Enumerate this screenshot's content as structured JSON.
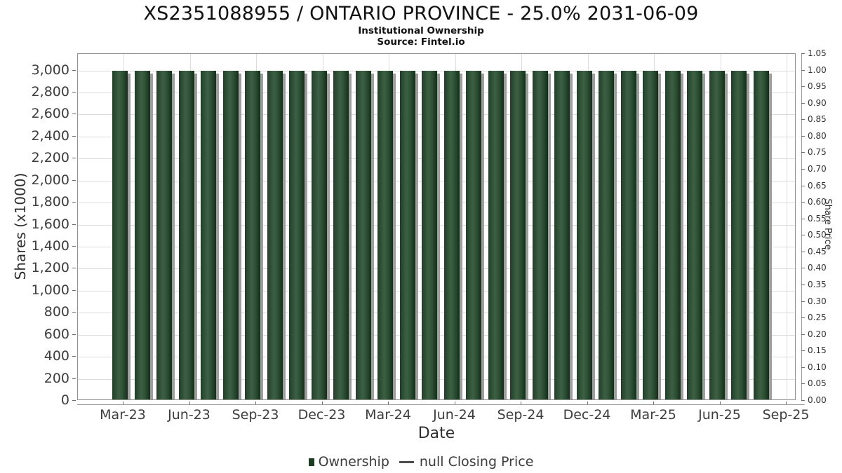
{
  "header": {
    "title": "XS2351088955 / ONTARIO PROVINCE - 25.0% 2031-06-09",
    "subtitle": "Institutional Ownership",
    "source": "Source: Fintel.io"
  },
  "chart_data": {
    "type": "bar",
    "title": "XS2351088955 / ONTARIO PROVINCE - 25.0% 2031-06-09",
    "subtitle": "Institutional Ownership",
    "source": "Source: Fintel.io",
    "xlabel": "Date",
    "ylabel_left": "Shares (x1000)",
    "ylabel_right": "Share Price",
    "categories": [
      "Mar-23",
      "Apr-23",
      "May-23",
      "Jun-23",
      "Jul-23",
      "Aug-23",
      "Sep-23",
      "Oct-23",
      "Nov-23",
      "Dec-23",
      "Jan-24",
      "Feb-24",
      "Mar-24",
      "Apr-24",
      "May-24",
      "Jun-24",
      "Jul-24",
      "Aug-24",
      "Sep-24",
      "Oct-24",
      "Nov-24",
      "Dec-24",
      "Jan-25",
      "Feb-25",
      "Mar-25",
      "Apr-25",
      "May-25",
      "Jun-25",
      "Jul-25",
      "Aug-25"
    ],
    "series": [
      {
        "name": "Ownership",
        "values": [
          3000,
          3000,
          3000,
          3000,
          3000,
          3000,
          3000,
          3000,
          3000,
          3000,
          3000,
          3000,
          3000,
          3000,
          3000,
          3000,
          3000,
          3000,
          3000,
          3000,
          3000,
          3000,
          3000,
          3000,
          3000,
          3000,
          3000,
          3000,
          3000,
          3000
        ]
      },
      {
        "name": "null Closing Price",
        "values": []
      }
    ],
    "x_ticks": [
      "Mar-23",
      "Jun-23",
      "Sep-23",
      "Dec-23",
      "Mar-24",
      "Jun-24",
      "Sep-24",
      "Dec-24",
      "Mar-25",
      "Jun-25",
      "Sep-25"
    ],
    "y_left_ticks": [
      "0",
      "200",
      "400",
      "600",
      "800",
      "1,000",
      "1,200",
      "1,400",
      "1,600",
      "1,800",
      "2,000",
      "2,200",
      "2,400",
      "2,600",
      "2,800",
      "3,000"
    ],
    "y_right_ticks": [
      "0.00",
      "0.05",
      "0.10",
      "0.15",
      "0.20",
      "0.25",
      "0.30",
      "0.35",
      "0.40",
      "0.45",
      "0.50",
      "0.55",
      "0.60",
      "0.65",
      "0.70",
      "0.75",
      "0.80",
      "0.85",
      "0.90",
      "0.95",
      "1.00",
      "1.05"
    ],
    "ylim_left": [
      0,
      3150
    ],
    "ylim_right": [
      0,
      1.05
    ],
    "grid": true,
    "legend_position": "bottom"
  },
  "legend": {
    "items": [
      {
        "label": "Ownership",
        "marker": "square",
        "color": "#1e3b24"
      },
      {
        "label": "null Closing Price",
        "marker": "dash",
        "color": "#4d4d4d"
      }
    ]
  },
  "colors": {
    "bar_edge": "#142d19",
    "bar_mid": "#3d6044",
    "bar_shadow": "#9e9e9e",
    "grid": "#dcdcdc",
    "plot_border": "#919191",
    "axis_line": "#9a9a9a",
    "tick_text": "#3d3d3d",
    "title_text": "#111111"
  }
}
